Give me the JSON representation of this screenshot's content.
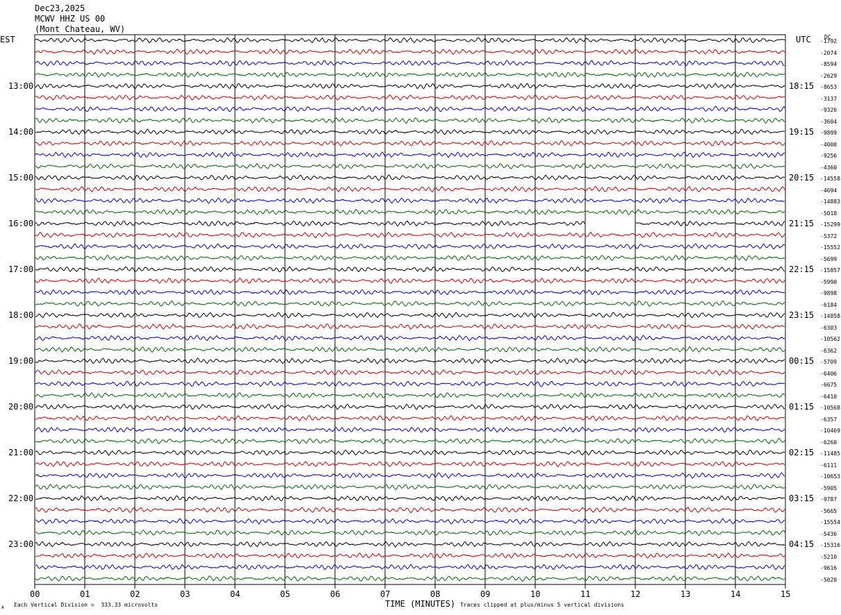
{
  "header": {
    "date": "Dec23,2025",
    "station": "MCWV HHZ US 00",
    "location": "(Mont Chateau, WV)"
  },
  "left_timezone": "EST",
  "right_timezone": "UTC",
  "dc_label": "DC",
  "footer": {
    "xlabel": "TIME (MINUTES)",
    "scale_note": "Each Vertical Division =  333.33 microvolts",
    "clip_note": "Traces clipped at plus/minus 5 vertical divisions",
    "corner_mark": "A"
  },
  "colors": {
    "cycle": [
      "#000000",
      "#cc0000",
      "#0000cc",
      "#006600"
    ],
    "grid": "#000000"
  },
  "chart_data": {
    "type": "line",
    "title": "MCWV HHZ US 00",
    "xlabel": "TIME (MINUTES)",
    "xlim": [
      0,
      15
    ],
    "x_ticks": [
      "00",
      "01",
      "02",
      "03",
      "04",
      "05",
      "06",
      "07",
      "08",
      "09",
      "10",
      "11",
      "12",
      "13",
      "14",
      "15"
    ],
    "rows_per_hour": 4,
    "trace_count": 48,
    "left_hour_labels": [
      "13:00",
      "14:00",
      "15:00",
      "16:00",
      "17:00",
      "18:00",
      "19:00",
      "20:00",
      "21:00",
      "22:00",
      "23:00"
    ],
    "right_hour_labels": [
      "18:15",
      "19:15",
      "20:15",
      "21:15",
      "22:15",
      "23:15",
      "00:15",
      "01:15",
      "02:15",
      "03:15",
      "04:15"
    ],
    "dc_offsets": [
      "-1792",
      "-2074",
      "-8594",
      "-2629",
      "-8653",
      "-3137",
      "-9326",
      "-3604",
      "-9899",
      "-4000",
      "-9256",
      "-4360",
      "-14558",
      "-4694",
      "-14883",
      "-5018",
      "-15299",
      "-5372",
      "-15552",
      "-5699",
      "-15857",
      "-5990",
      "-9898",
      "-6184",
      "-14858",
      "-6303",
      "-10562",
      "-6362",
      "-5709",
      "-6406",
      "-6675",
      "-6410",
      "-10568",
      "-6357",
      "-10469",
      "-6260",
      "-11485",
      "-6111",
      "-10653",
      "-5905",
      "-9787",
      "-5665",
      "-15554",
      "-5436",
      "-15316",
      "-5210",
      "-9616",
      "-5020"
    ],
    "gaps": [
      {
        "trace": 16,
        "x_start_min": 11.0,
        "x_end_min": 12.0
      }
    ],
    "annotations": [
      "Each Vertical Division =  333.33 microvolts",
      "Traces clipped at plus/minus 5 vertical divisions"
    ]
  }
}
